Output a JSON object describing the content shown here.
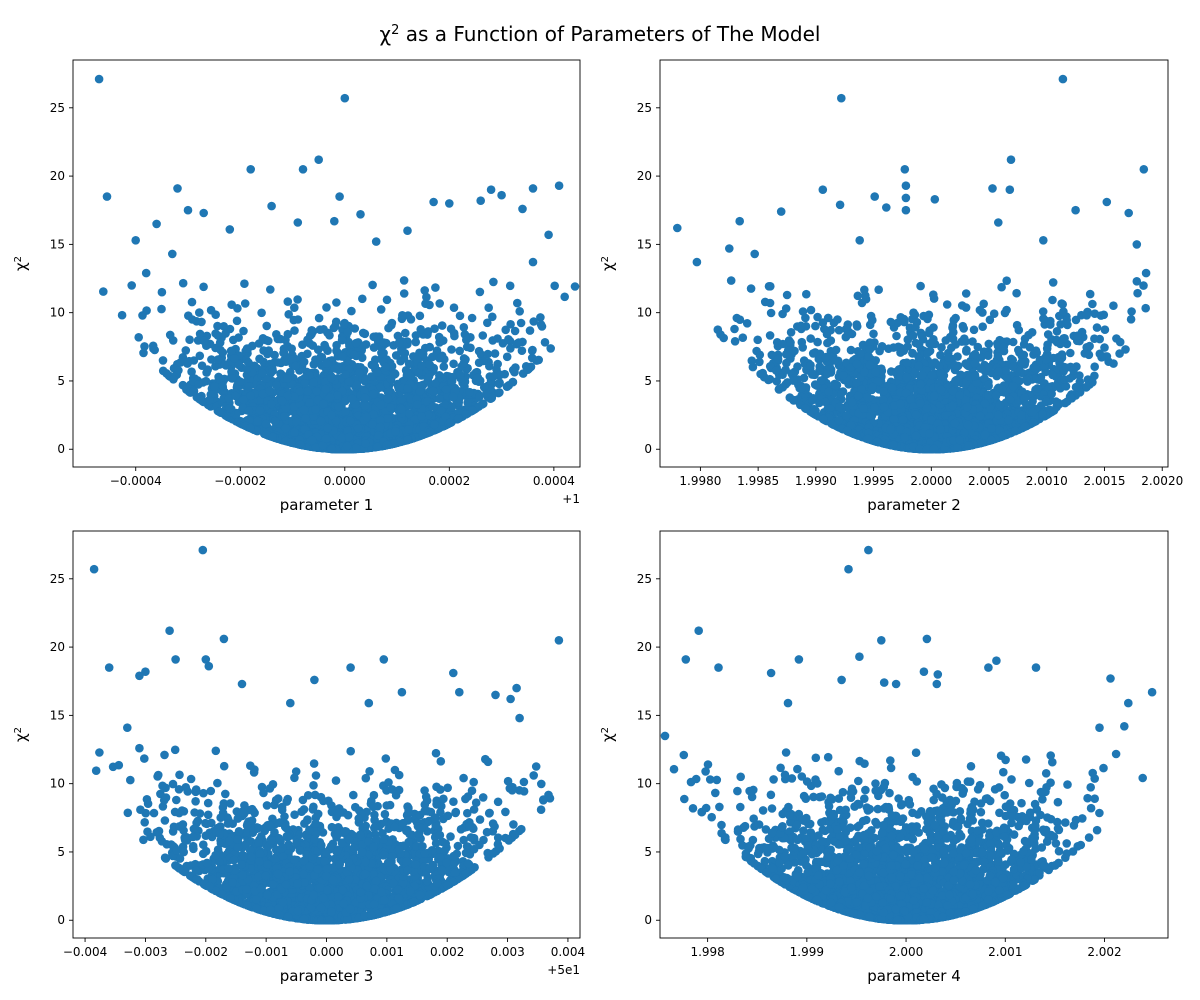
{
  "figure": {
    "title_base": "χ",
    "title_sup": "2",
    "title_rest": " as a Function of Parameters of The Model"
  },
  "chart_data": [
    {
      "type": "scatter",
      "xlabel": "parameter 1",
      "ylabel_base": "χ",
      "ylabel_sup": "2",
      "offset_text": "+1",
      "xlim": [
        -0.00052,
        0.00045
      ],
      "ylim": [
        -1.3,
        28.5
      ],
      "x_ticks": [
        -0.0004,
        -0.0002,
        0.0,
        0.0002,
        0.0004
      ],
      "x_tick_labels": [
        "−0.0004",
        "−0.0002",
        "0.0000",
        "0.0002",
        "0.0004"
      ],
      "y_ticks": [
        0,
        5,
        10,
        15,
        20,
        25
      ],
      "y_tick_labels": [
        "0",
        "5",
        "10",
        "15",
        "20",
        "25"
      ],
      "center": 0.0,
      "sigma": 0.000145,
      "color": "#1f77b4",
      "points": [
        [
          -0.00047,
          27.1
        ],
        [
          0.0,
          25.7
        ],
        [
          -0.000455,
          18.5
        ],
        [
          -0.00018,
          20.5
        ],
        [
          -8e-05,
          20.5
        ],
        [
          -5e-05,
          21.2
        ],
        [
          -0.00032,
          19.1
        ],
        [
          0.00041,
          19.3
        ],
        [
          0.00036,
          19.1
        ],
        [
          0.00028,
          19.0
        ],
        [
          0.0003,
          18.6
        ],
        [
          0.0002,
          18.0
        ],
        [
          0.00017,
          18.1
        ],
        [
          -1e-05,
          18.5
        ],
        [
          -0.0004,
          15.3
        ],
        [
          -0.00036,
          16.5
        ],
        [
          -0.0003,
          17.5
        ],
        [
          -0.00027,
          17.3
        ],
        [
          -0.00014,
          17.8
        ],
        [
          -0.00035,
          11.5
        ],
        [
          -0.00033,
          14.3
        ],
        [
          0.00034,
          17.6
        ],
        [
          0.00039,
          15.7
        ],
        [
          0.00026,
          18.2
        ],
        [
          3e-05,
          17.2
        ],
        [
          -2e-05,
          16.7
        ],
        [
          0.00012,
          16.0
        ],
        [
          6e-05,
          15.2
        ],
        [
          -0.00022,
          16.1
        ],
        [
          -9e-05,
          16.6
        ],
        [
          0.00036,
          13.7
        ],
        [
          0.00033,
          10.7
        ],
        [
          -0.00038,
          12.9
        ]
      ]
    },
    {
      "type": "scatter",
      "xlabel": "parameter 2",
      "ylabel_base": "χ",
      "ylabel_sup": "2",
      "offset_text": "",
      "xlim": [
        1.99765,
        2.00205
      ],
      "ylim": [
        -1.3,
        28.5
      ],
      "x_ticks": [
        1.998,
        1.9985,
        1.999,
        1.9995,
        2.0,
        2.0005,
        2.001,
        2.0015,
        2.002
      ],
      "x_tick_labels": [
        "1.9980",
        "1.9985",
        "1.9990",
        "1.9995",
        "2.0000",
        "2.0005",
        "2.0010",
        "2.0015",
        "2.0020"
      ],
      "y_ticks": [
        0,
        5,
        10,
        15,
        20,
        25
      ],
      "y_tick_labels": [
        "0",
        "5",
        "10",
        "15",
        "20",
        "25"
      ],
      "center": 2.0,
      "sigma": 0.00063,
      "color": "#1f77b4",
      "points": [
        [
          2.00114,
          27.1
        ],
        [
          1.99922,
          25.7
        ],
        [
          2.00184,
          20.5
        ],
        [
          1.99977,
          20.5
        ],
        [
          2.00069,
          21.2
        ],
        [
          1.99978,
          19.3
        ],
        [
          1.99906,
          19.0
        ],
        [
          2.00053,
          19.1
        ],
        [
          2.00068,
          19.0
        ],
        [
          1.99951,
          18.5
        ],
        [
          2.00003,
          18.3
        ],
        [
          2.00152,
          18.1
        ],
        [
          1.99921,
          17.9
        ],
        [
          1.99961,
          17.7
        ],
        [
          1.99978,
          17.5
        ],
        [
          2.00125,
          17.5
        ],
        [
          2.00171,
          17.3
        ],
        [
          1.99978,
          18.4
        ],
        [
          1.9987,
          17.4
        ],
        [
          1.9978,
          16.2
        ],
        [
          1.99834,
          16.7
        ],
        [
          1.99938,
          15.3
        ],
        [
          2.00058,
          16.6
        ],
        [
          2.00097,
          15.3
        ],
        [
          2.00178,
          15.0
        ],
        [
          1.99847,
          14.3
        ],
        [
          1.99825,
          14.7
        ],
        [
          1.99797,
          13.7
        ],
        [
          2.00186,
          12.9
        ],
        [
          2.00178,
          12.3
        ]
      ]
    },
    {
      "type": "scatter",
      "xlabel": "parameter 3",
      "ylabel_base": "χ",
      "ylabel_sup": "2",
      "offset_text": "+5e1",
      "xlim": [
        -0.0042,
        0.0042
      ],
      "ylim": [
        -1.3,
        28.5
      ],
      "x_ticks": [
        -0.004,
        -0.003,
        -0.002,
        -0.001,
        0.0,
        0.001,
        0.002,
        0.003,
        0.004
      ],
      "x_tick_labels": [
        "−0.004",
        "−0.003",
        "−0.002",
        "−0.001",
        "0.000",
        "0.001",
        "0.002",
        "0.003",
        "0.004"
      ],
      "y_ticks": [
        0,
        5,
        10,
        15,
        20,
        25
      ],
      "y_tick_labels": [
        "0",
        "5",
        "10",
        "15",
        "20",
        "25"
      ],
      "center": 0.0,
      "sigma": 0.00125,
      "color": "#1f77b4",
      "points": [
        [
          -0.00385,
          25.7
        ],
        [
          -0.00205,
          27.1
        ],
        [
          0.00385,
          20.5
        ],
        [
          -0.0026,
          21.2
        ],
        [
          -0.0017,
          20.6
        ],
        [
          -0.0036,
          18.5
        ],
        [
          -0.003,
          18.2
        ],
        [
          -0.0031,
          17.9
        ],
        [
          -0.002,
          19.1
        ],
        [
          -0.00195,
          18.6
        ],
        [
          -0.0025,
          19.1
        ],
        [
          0.00095,
          19.1
        ],
        [
          0.0021,
          18.1
        ],
        [
          0.0004,
          18.5
        ],
        [
          -0.0002,
          17.6
        ],
        [
          0.00315,
          17.0
        ],
        [
          0.00305,
          16.2
        ],
        [
          0.0028,
          16.5
        ],
        [
          0.0032,
          14.8
        ],
        [
          -0.0033,
          14.1
        ],
        [
          -0.0031,
          12.6
        ],
        [
          0.0022,
          16.7
        ],
        [
          0.00125,
          16.7
        ],
        [
          0.0007,
          15.9
        ],
        [
          -0.0006,
          15.9
        ],
        [
          -0.0014,
          17.3
        ]
      ]
    },
    {
      "type": "scatter",
      "xlabel": "parameter 4",
      "ylabel_base": "χ",
      "ylabel_sup": "2",
      "offset_text": "",
      "xlim": [
        1.99752,
        2.00264
      ],
      "ylim": [
        -1.3,
        28.5
      ],
      "x_ticks": [
        1.998,
        1.999,
        2.0,
        2.001,
        2.002
      ],
      "x_tick_labels": [
        "1.998",
        "1.999",
        "2.000",
        "2.001",
        "2.002"
      ],
      "y_ticks": [
        0,
        5,
        10,
        15,
        20,
        25
      ],
      "y_tick_labels": [
        "0",
        "5",
        "10",
        "15",
        "20",
        "25"
      ],
      "center": 2.0,
      "sigma": 0.00075,
      "color": "#1f77b4",
      "points": [
        [
          1.99962,
          27.1
        ],
        [
          1.99942,
          25.7
        ],
        [
          1.99791,
          21.2
        ],
        [
          1.99975,
          20.5
        ],
        [
          2.00021,
          20.6
        ],
        [
          1.99778,
          19.1
        ],
        [
          1.99811,
          18.5
        ],
        [
          1.99892,
          19.1
        ],
        [
          1.99953,
          19.3
        ],
        [
          2.00032,
          18.0
        ],
        [
          2.00031,
          17.3
        ],
        [
          2.00018,
          18.2
        ],
        [
          2.00083,
          18.5
        ],
        [
          2.00091,
          19.0
        ],
        [
          2.00131,
          18.5
        ],
        [
          2.00206,
          17.7
        ],
        [
          2.00248,
          16.7
        ],
        [
          2.00224,
          15.9
        ],
        [
          1.99864,
          18.1
        ],
        [
          1.99935,
          17.6
        ],
        [
          1.99881,
          15.9
        ],
        [
          1.99757,
          13.5
        ],
        [
          1.99776,
          12.1
        ],
        [
          1.99798,
          10.9
        ],
        [
          2.00195,
          14.1
        ],
        [
          2.0022,
          14.2
        ],
        [
          1.9999,
          17.3
        ],
        [
          1.99978,
          17.4
        ]
      ]
    }
  ]
}
